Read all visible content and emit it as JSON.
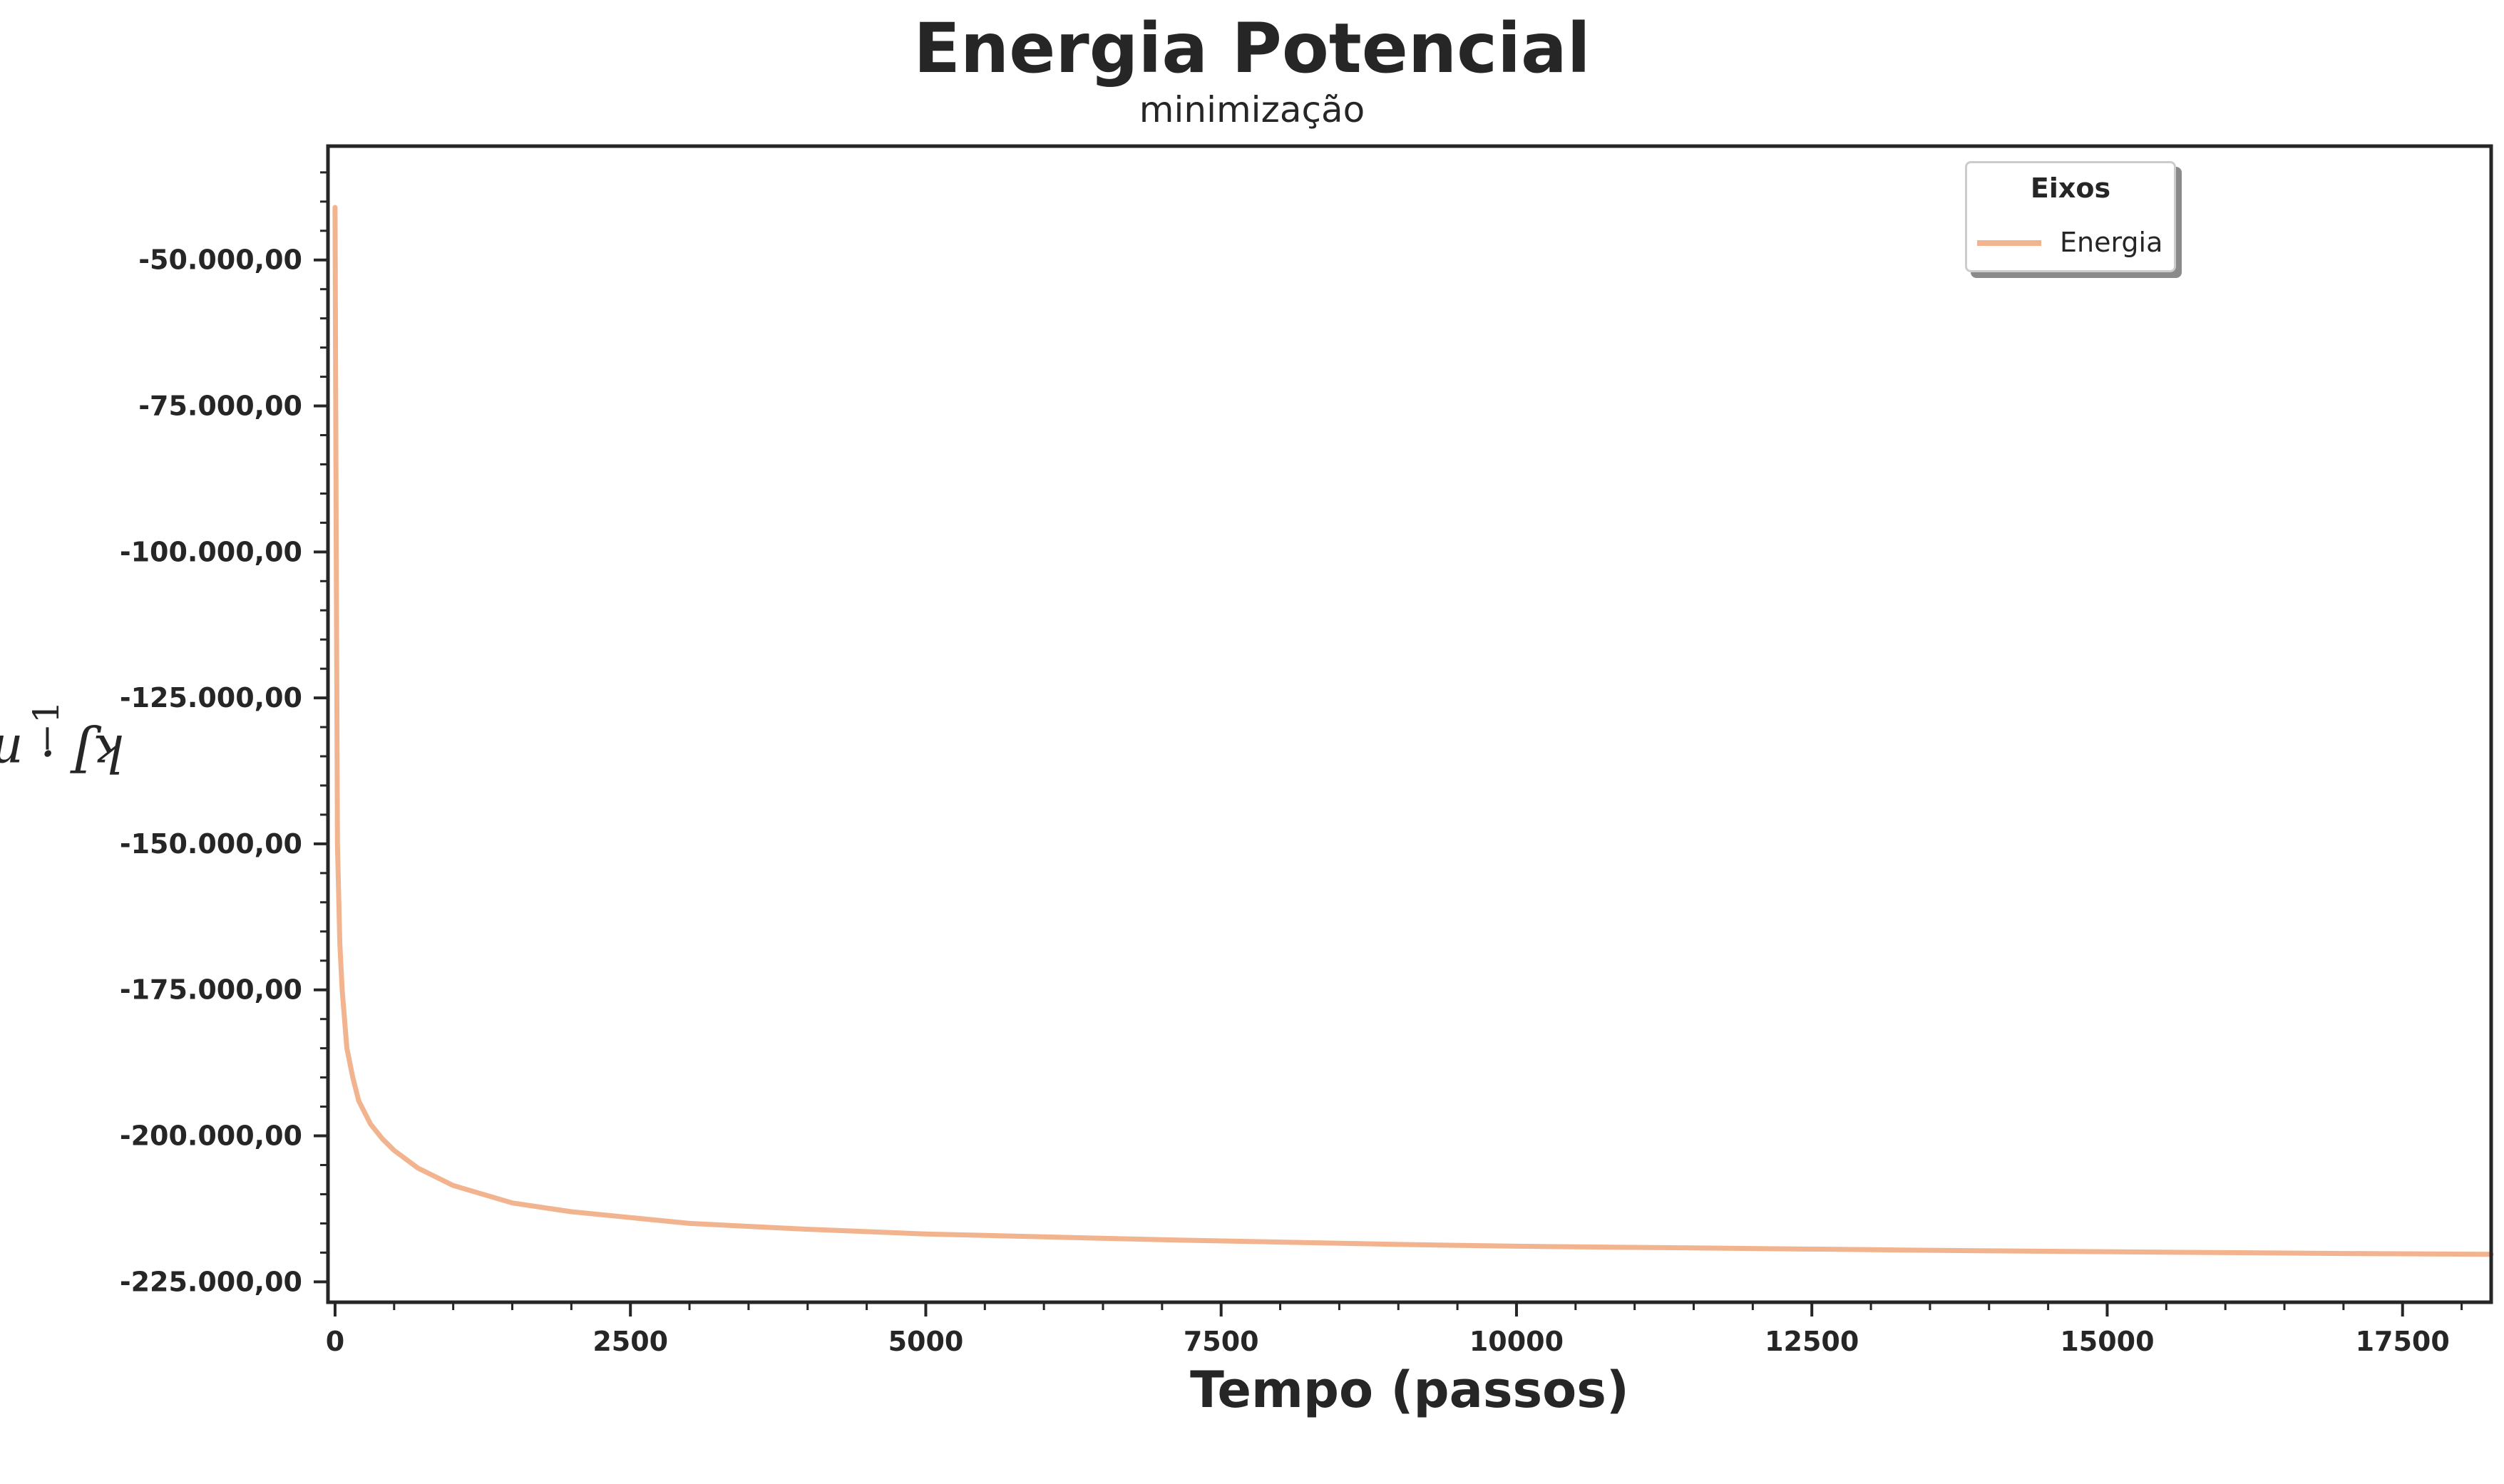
{
  "chart_data": {
    "type": "line",
    "title": "Energia Potencial",
    "subtitle": "minimização",
    "xlabel": "Tempo (passos)",
    "ylabel": "kJ · mol",
    "ylabel_exponent": "−1",
    "xlim": [
      -60,
      18250
    ],
    "ylim": [
      -228500,
      -30500
    ],
    "x_ticks": [
      0,
      2500,
      5000,
      7500,
      10000,
      12500,
      15000,
      17500
    ],
    "x_tick_labels": [
      "0",
      "2500",
      "5000",
      "7500",
      "10000",
      "12500",
      "15000",
      "17500"
    ],
    "y_ticks": [
      -50000,
      -75000,
      -100000,
      -125000,
      -150000,
      -175000,
      -200000,
      -225000
    ],
    "y_tick_labels": [
      "-50.000,00",
      "-75.000,00",
      "-100.000,00",
      "-125.000,00",
      "-150.000,00",
      "-175.000,00",
      "-200.000,00",
      "-225.000,00"
    ],
    "grid": false,
    "legend": {
      "title": "Eixos",
      "placement": "top-right"
    },
    "series": [
      {
        "name": "Energia",
        "color": "#f2b48e",
        "x": [
          0,
          10,
          20,
          40,
          60,
          80,
          100,
          150,
          200,
          300,
          400,
          500,
          700,
          1000,
          1500,
          2000,
          2500,
          3000,
          4000,
          5000,
          6000,
          7000,
          8000,
          9000,
          10000,
          11000,
          12000,
          13000,
          14000,
          15000,
          16000,
          17000,
          18250
        ],
        "y": [
          -41000,
          -100000,
          -150000,
          -167000,
          -175000,
          -180000,
          -185000,
          -190000,
          -194000,
          -198000,
          -200500,
          -202500,
          -205500,
          -208500,
          -211500,
          -213000,
          -214000,
          -215000,
          -216000,
          -216800,
          -217300,
          -217800,
          -218200,
          -218600,
          -218900,
          -219100,
          -219300,
          -219500,
          -219700,
          -219850,
          -220000,
          -220150,
          -220300
        ]
      }
    ]
  }
}
